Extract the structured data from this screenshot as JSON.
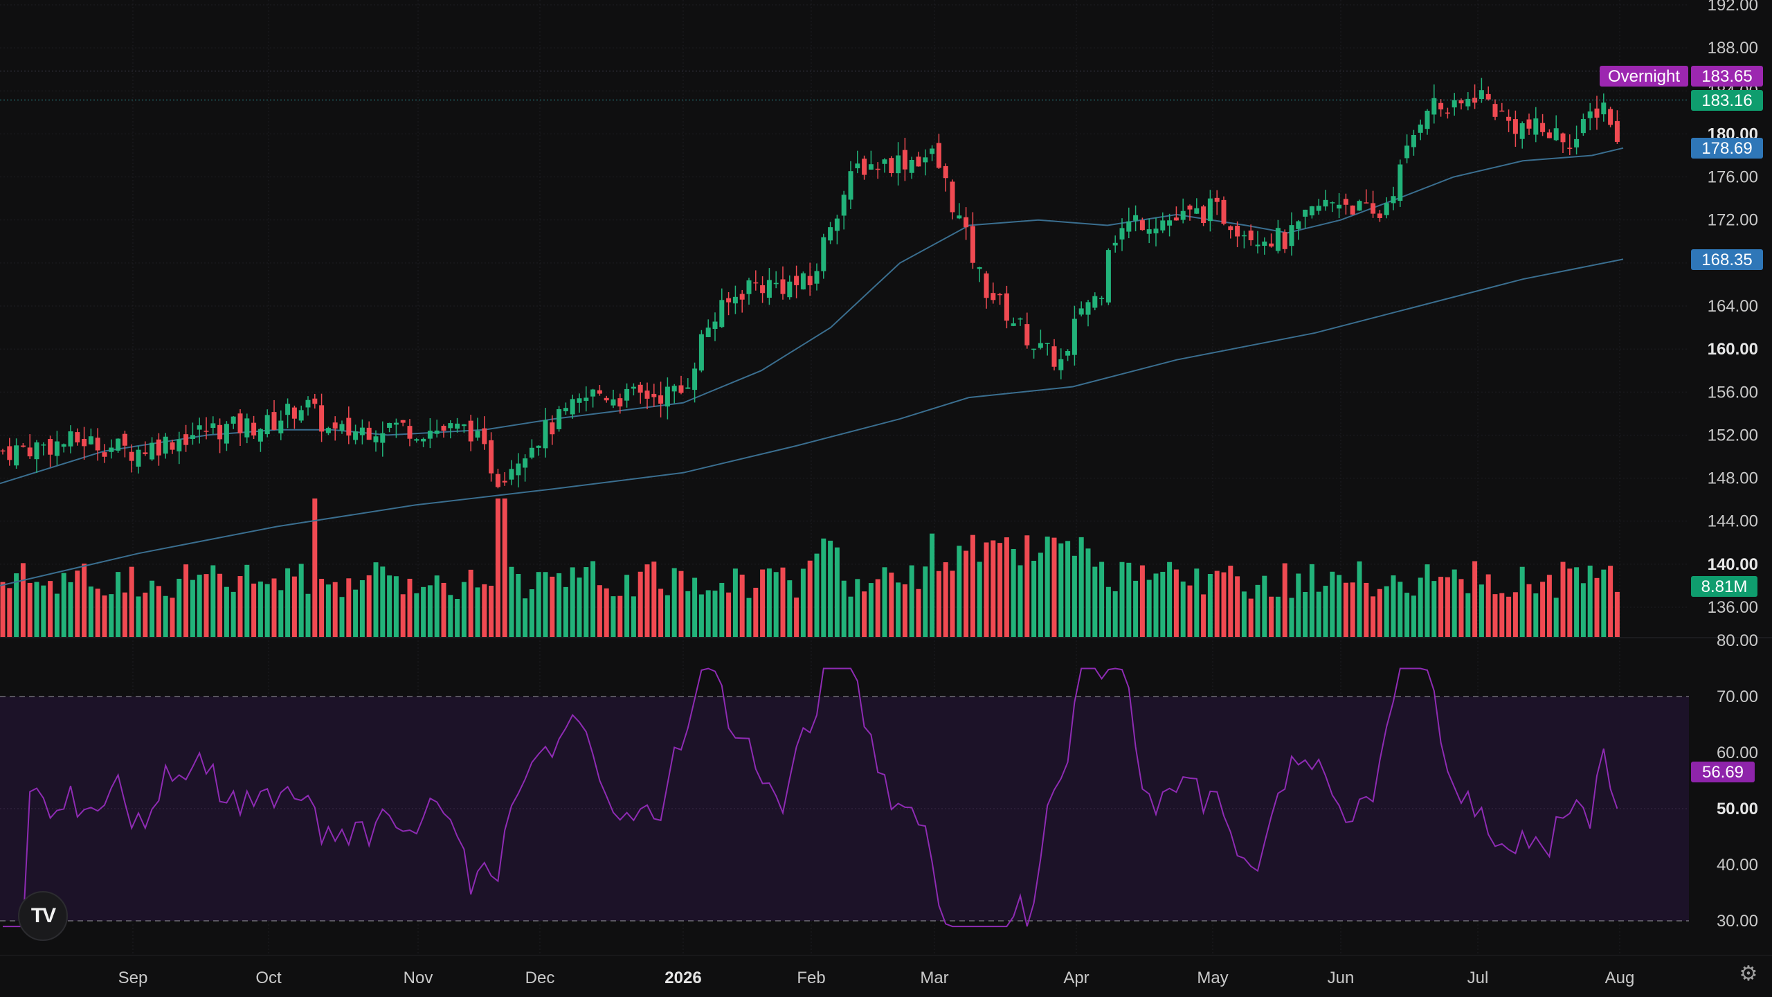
{
  "colors": {
    "background": "#0f0f10",
    "up": "#22b37a",
    "down": "#f04a52",
    "ma": "#3a6e8f",
    "rsi_line": "#8e2bb3",
    "rsi_band": "#1c1228",
    "overnight_tag": "#9c27b0",
    "last_tag": "#0f9d6e",
    "ma50_tag": "#2f77b8",
    "ma200_tag": "#2f77b8",
    "volume_tag": "#0f9d6e",
    "rsi_tag": "#8e24aa"
  },
  "price_axis": {
    "ticks": [
      "192.00",
      "188.00",
      "184.00",
      "180.00",
      "176.00",
      "172.00",
      "168.00",
      "164.00",
      "160.00",
      "156.00",
      "152.00",
      "148.00",
      "144.00",
      "140.00",
      "136.00"
    ],
    "bold_ticks": [
      "180.00",
      "160.00",
      "140.00"
    ]
  },
  "rsi_axis": {
    "ticks": [
      "80.00",
      "70.00",
      "60.00",
      "50.00",
      "40.00",
      "30.00"
    ],
    "bold_ticks": [
      "50.00"
    ]
  },
  "time_axis": {
    "labels": [
      "Sep",
      "Oct",
      "Nov",
      "Dec",
      "2026",
      "Feb",
      "Mar",
      "Apr",
      "May",
      "Jun",
      "Jul",
      "Aug"
    ],
    "bold_labels": [
      "2026"
    ]
  },
  "tags": {
    "overnight_label": "Overnight",
    "overnight_value": "183.65",
    "last_price": "183.16",
    "ma50": "178.69",
    "ma200": "168.35",
    "volume": "8.81M",
    "rsi": "56.69"
  },
  "icons": {
    "logo": "tradingview-logo-icon",
    "settings": "gear-icon"
  },
  "chart_data": [
    {
      "type": "candlestick",
      "x_start": "2025-08",
      "x_end": "2026-08",
      "ylim": [
        134,
        192
      ],
      "summary_points": [
        {
          "month": "Aug",
          "close": 151
        },
        {
          "month": "Sep",
          "close": 151
        },
        {
          "month": "Oct",
          "close": 153
        },
        {
          "month": "Nov",
          "close": 152
        },
        {
          "month": "Nov-late-low",
          "close": 147
        },
        {
          "month": "Dec",
          "close": 154
        },
        {
          "month": "2026",
          "close": 157
        },
        {
          "month": "Feb",
          "close": 167
        },
        {
          "month": "Feb-late-high",
          "close": 178
        },
        {
          "month": "Mar",
          "close": 176
        },
        {
          "month": "Apr-low",
          "close": 157
        },
        {
          "month": "Apr",
          "close": 165
        },
        {
          "month": "May",
          "close": 172
        },
        {
          "month": "Jun",
          "close": 174
        },
        {
          "month": "Jul",
          "close": 184
        },
        {
          "month": "Aug",
          "close": 183.16
        }
      ],
      "series": [
        {
          "name": "",
          "kind": "moving-average-50",
          "last": 178.69
        },
        {
          "name": "",
          "kind": "moving-average-200",
          "last": 168.35
        }
      ]
    },
    {
      "type": "bar",
      "kind": "volume",
      "last": "8.81M"
    },
    {
      "type": "line",
      "kind": "rsi",
      "ylim": [
        28,
        80
      ],
      "band": [
        30,
        70
      ],
      "last": 56.69
    }
  ]
}
